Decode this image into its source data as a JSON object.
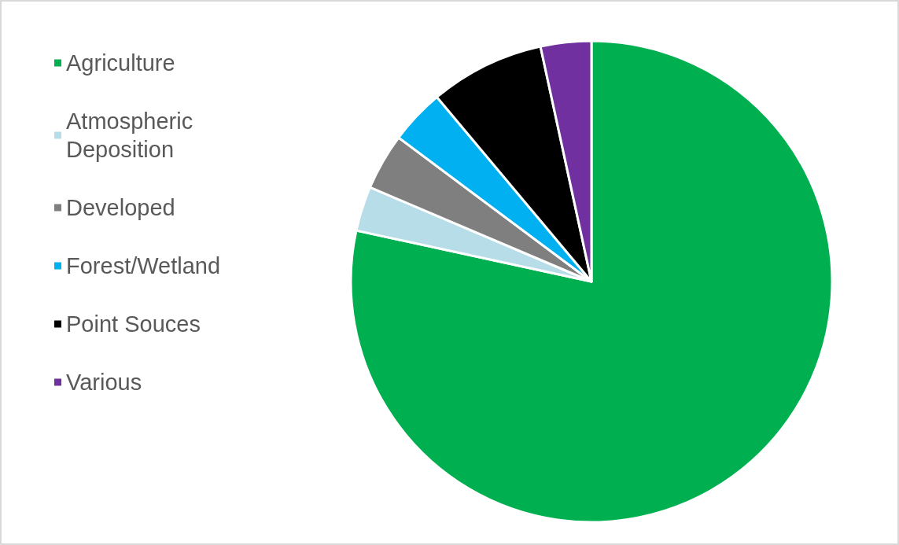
{
  "chart_data": {
    "type": "pie",
    "categories": [
      "Agriculture",
      "Atmospheric Deposition",
      "Developed",
      "Forest/Wetland",
      "Point Souces",
      "Various"
    ],
    "values": [
      78.4,
      3,
      3.8,
      3.7,
      7.7,
      3.4
    ],
    "colors": [
      "#00b050",
      "#b7dee8",
      "#7f7f7f",
      "#00b0f0",
      "#000000",
      "#7030a0"
    ],
    "legend": "left"
  }
}
